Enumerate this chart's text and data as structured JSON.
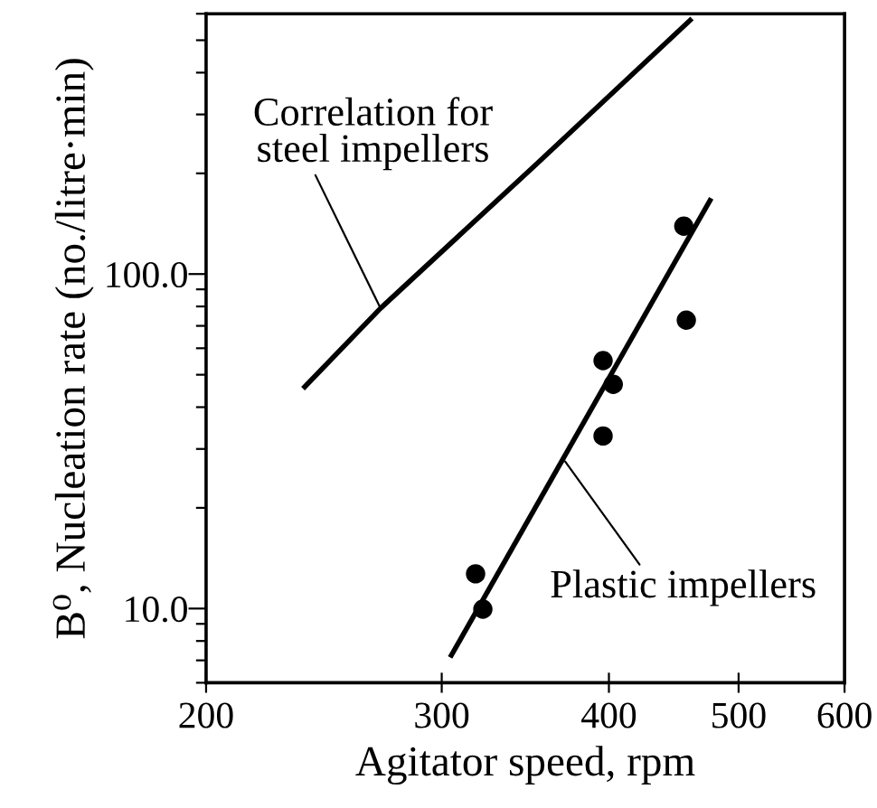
{
  "chart_data": {
    "type": "scatter",
    "xlabel": "Agitator speed, rpm",
    "ylabel": "B⁰, Nucleation rate (no./litre·min)",
    "log": "xy",
    "grid": false,
    "legend": false,
    "xlim": [
      200,
      600
    ],
    "xticks": [
      200,
      300,
      400,
      500,
      600
    ],
    "ylim": [
      6,
      600
    ],
    "yticks": [
      {
        "value": 6,
        "label": null
      },
      {
        "value": 7,
        "label": null
      },
      {
        "value": 8,
        "label": null
      },
      {
        "value": 9,
        "label": null
      },
      {
        "value": 10,
        "label": "10.0"
      },
      {
        "value": 20,
        "label": null
      },
      {
        "value": 30,
        "label": null
      },
      {
        "value": 40,
        "label": null
      },
      {
        "value": 50,
        "label": null
      },
      {
        "value": 60,
        "label": null
      },
      {
        "value": 70,
        "label": null
      },
      {
        "value": 80,
        "label": null
      },
      {
        "value": 90,
        "label": null
      },
      {
        "value": 100,
        "label": "100.0"
      },
      {
        "value": 200,
        "label": null
      },
      {
        "value": 300,
        "label": null
      },
      {
        "value": 400,
        "label": null
      },
      {
        "value": 500,
        "label": null
      },
      {
        "value": 600,
        "label": null
      }
    ],
    "series": [
      {
        "type": "line",
        "color": "#000000",
        "x": [
          237,
          270,
          353,
          460
        ],
        "values": [
          46,
          79,
          213,
          574
        ],
        "marker": "none",
        "line_style": "solid"
      },
      {
        "type": "line",
        "color": "#000000",
        "x": [
          305,
          476
        ],
        "values": [
          7.25,
          166
        ],
        "marker": "none",
        "line_style": "solid"
      },
      {
        "color": "#000000",
        "marker": "circle",
        "x": [
          455,
          457,
          396,
          403,
          396,
          318,
          322
        ],
        "values": [
          139,
          72.8,
          55.1,
          46.8,
          32.8,
          12.7,
          9.96
        ]
      }
    ],
    "annotations": [
      {
        "text": "Correlation for\nsteel impellers",
        "x": 270,
        "y": 79
      },
      {
        "text": "Plastic impellers",
        "x": 371,
        "y": 27.5
      }
    ]
  }
}
